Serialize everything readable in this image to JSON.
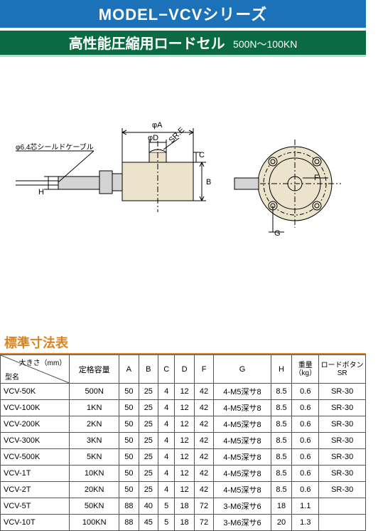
{
  "header": {
    "title_blue": "MODEL−VCVシリーズ",
    "title_green_main": "高性能圧縮用ロードセル",
    "title_green_sub": "500N〜100KN"
  },
  "diagram": {
    "cable_label": "φ6.4芯シールドケーブル",
    "dim_A": "φA",
    "dim_B": "B",
    "dim_C": "C",
    "dim_D": "φD",
    "dim_E": "SR.E",
    "dim_F": "F",
    "dim_G": "G",
    "dim_H": "H",
    "stroke_color": "#000000",
    "body_fill": "#ebe3cb",
    "connector_fill": "#d4d4d4"
  },
  "table": {
    "section_title": "標準寸法表",
    "header": {
      "diag_top": "大きさ（mm）",
      "diag_bottom": "型名",
      "capacity": "定格容量",
      "A": "A",
      "B": "B",
      "C": "C",
      "D": "D",
      "F": "F",
      "G": "G",
      "H": "H",
      "weight": "重量\n（kg）",
      "button": "ロードボタン\nSR"
    },
    "rows": [
      {
        "model": "VCV-50K",
        "cap": "500N",
        "A": "50",
        "B": "25",
        "C": "4",
        "D": "12",
        "F": "42",
        "G": "4-M5深サ8",
        "H": "8.5",
        "wt": "0.6",
        "btn": "SR-30"
      },
      {
        "model": "VCV-100K",
        "cap": "1KN",
        "A": "50",
        "B": "25",
        "C": "4",
        "D": "12",
        "F": "42",
        "G": "4-M5深サ8",
        "H": "8.5",
        "wt": "0.6",
        "btn": "SR-30"
      },
      {
        "model": "VCV-200K",
        "cap": "2KN",
        "A": "50",
        "B": "25",
        "C": "4",
        "D": "12",
        "F": "42",
        "G": "4-M5深サ8",
        "H": "8.5",
        "wt": "0.6",
        "btn": "SR-30"
      },
      {
        "model": "VCV-300K",
        "cap": "3KN",
        "A": "50",
        "B": "25",
        "C": "4",
        "D": "12",
        "F": "42",
        "G": "4-M5深サ8",
        "H": "8.5",
        "wt": "0.6",
        "btn": "SR-30"
      },
      {
        "model": "VCV-500K",
        "cap": "5KN",
        "A": "50",
        "B": "25",
        "C": "4",
        "D": "12",
        "F": "42",
        "G": "4-M5深サ8",
        "H": "8.5",
        "wt": "0.6",
        "btn": "SR-30"
      },
      {
        "model": "VCV-1T",
        "cap": "10KN",
        "A": "50",
        "B": "25",
        "C": "4",
        "D": "12",
        "F": "42",
        "G": "4-M5深サ8",
        "H": "8.5",
        "wt": "0.6",
        "btn": "SR-30"
      },
      {
        "model": "VCV-2T",
        "cap": "20KN",
        "A": "50",
        "B": "25",
        "C": "4",
        "D": "12",
        "F": "42",
        "G": "4-M5深サ8",
        "H": "8.5",
        "wt": "0.6",
        "btn": "SR-30"
      },
      {
        "model": "VCV-5T",
        "cap": "50KN",
        "A": "88",
        "B": "40",
        "C": "5",
        "D": "18",
        "F": "72",
        "G": "3-M6深サ6",
        "H": "18",
        "wt": "1.1",
        "btn": ""
      },
      {
        "model": "VCV-10T",
        "cap": "100KN",
        "A": "88",
        "B": "45",
        "C": "5",
        "D": "18",
        "F": "72",
        "G": "3-M6深サ6",
        "H": "20",
        "wt": "1.3",
        "btn": ""
      }
    ],
    "col_widths": {
      "model": 92,
      "cap": 66,
      "A": 26,
      "B": 26,
      "C": 22,
      "D": 26,
      "F": 26,
      "G": 76,
      "H": 28,
      "wt": 36,
      "btn": 62
    }
  },
  "colors": {
    "blue": "#1b72b8",
    "green": "#0a6b42",
    "green_underline": "#b0e0d0",
    "orange": "#d98422",
    "border": "#555555",
    "text": "#000000",
    "white": "#ffffff"
  }
}
